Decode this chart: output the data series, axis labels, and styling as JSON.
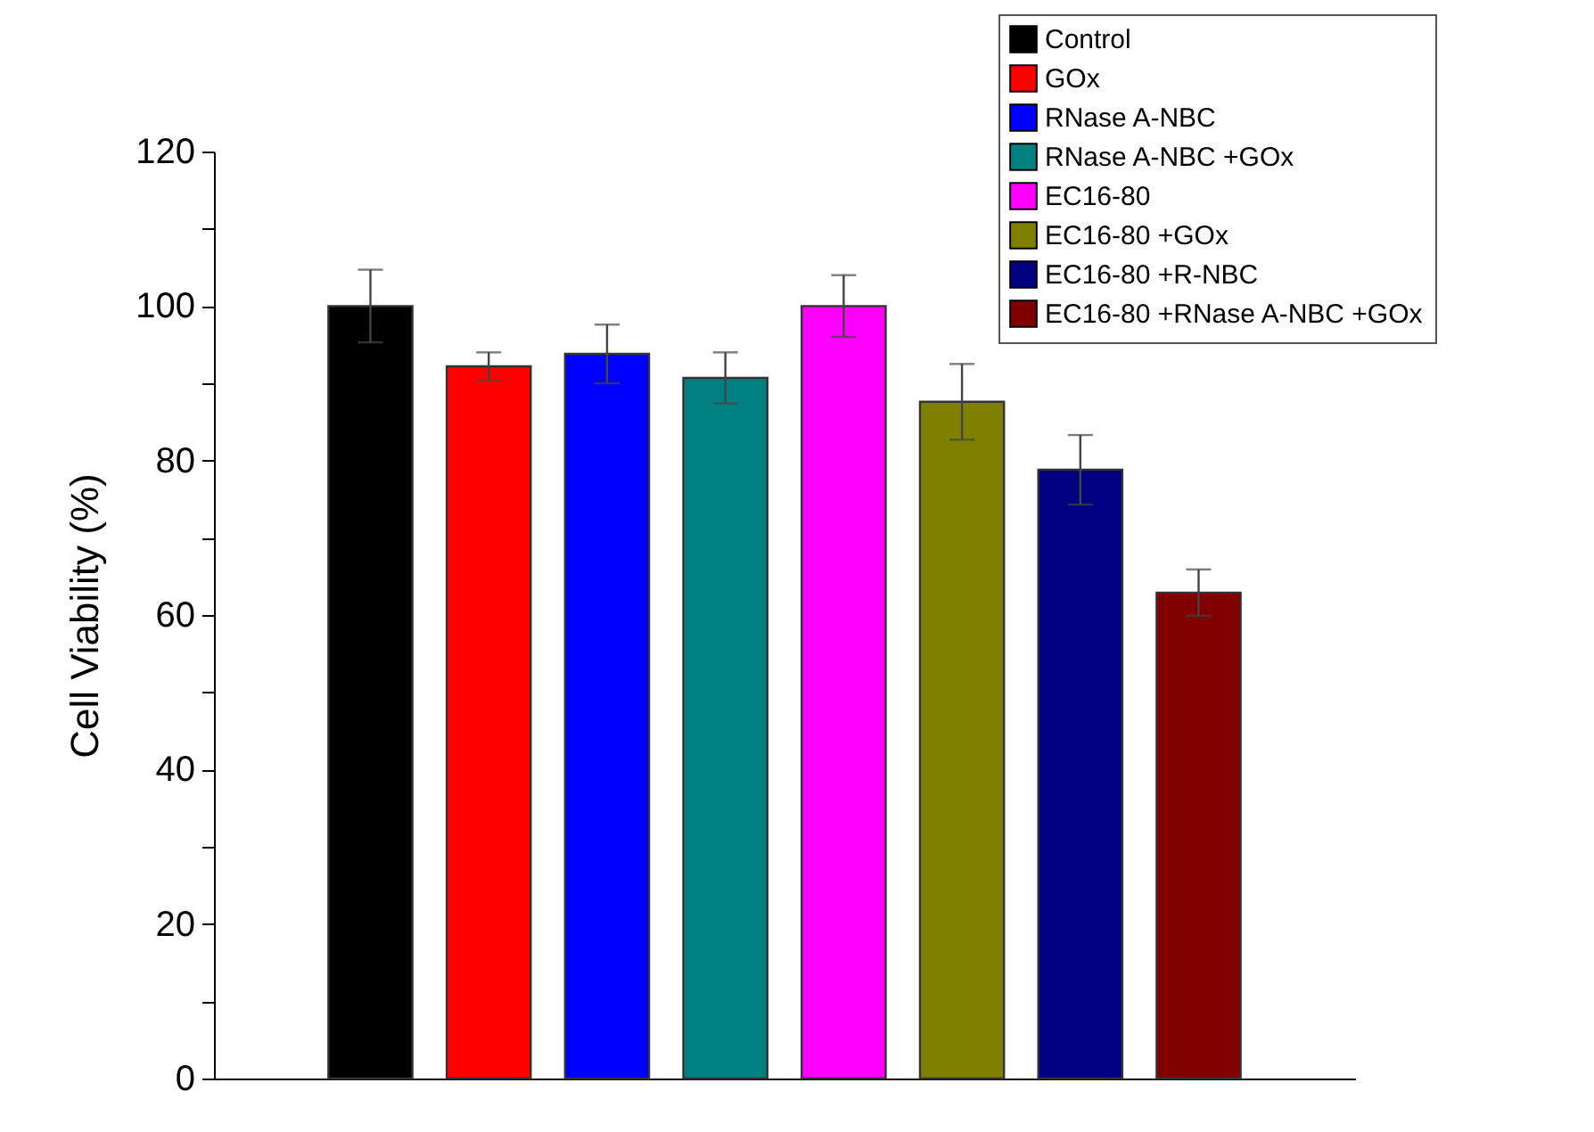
{
  "chart_data": {
    "type": "bar",
    "ylabel": "Cell Viability (%)",
    "categories": [
      null
    ],
    "series": [
      {
        "name": "Control",
        "color": "#000000",
        "values": [
          100
        ],
        "errors": [
          4.7
        ]
      },
      {
        "name": "GOx",
        "color": "#ff0000",
        "values": [
          92.2
        ],
        "errors": [
          1.8
        ]
      },
      {
        "name": "RNase A-NBC",
        "color": "#0000ff",
        "values": [
          93.8
        ],
        "errors": [
          3.8
        ]
      },
      {
        "name": "RNase A-NBC +GOx",
        "color": "#008080",
        "values": [
          90.7
        ],
        "errors": [
          3.3
        ]
      },
      {
        "name": "EC16-80",
        "color": "#ff00ff",
        "values": [
          100
        ],
        "errors": [
          4
        ]
      },
      {
        "name": "EC16-80 +GOx",
        "color": "#808000",
        "values": [
          87.6
        ],
        "errors": [
          4.9
        ]
      },
      {
        "name": "EC16-80 +R-NBC",
        "color": "#000080",
        "values": [
          78.8
        ],
        "errors": [
          4.5
        ]
      },
      {
        "name": "EC16-80 +RNase A-NBC +GOx",
        "color": "#800000",
        "values": [
          62.9
        ],
        "errors": [
          3
        ]
      }
    ],
    "ylim": [
      0,
      120
    ],
    "yticks": [
      0,
      {
        "value": 10,
        "label": null
      },
      20,
      {
        "value": 30,
        "label": null
      },
      40,
      {
        "value": 50,
        "label": null
      },
      60,
      {
        "value": 70,
        "label": null
      },
      80,
      {
        "value": 90,
        "label": null
      },
      100,
      {
        "value": 110,
        "label": null
      },
      120
    ],
    "tick_labels": "y",
    "legend": "top right"
  }
}
